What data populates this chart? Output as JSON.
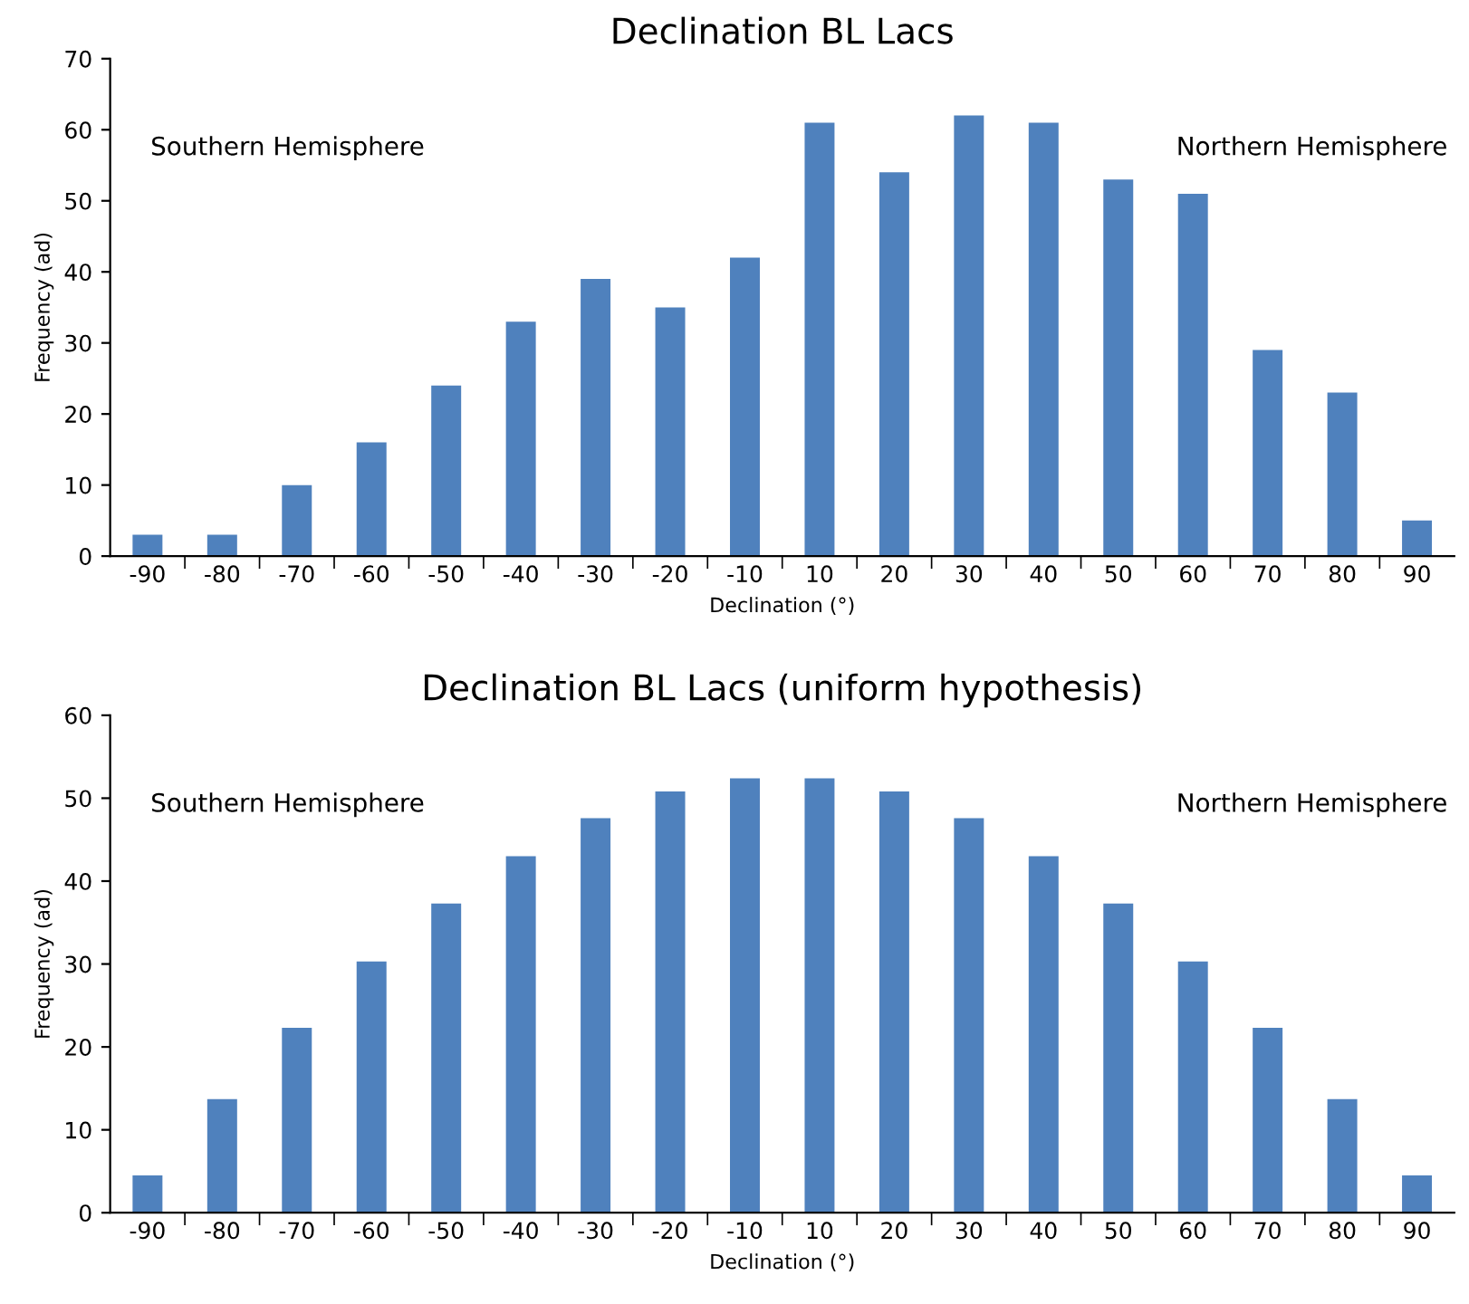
{
  "chart_data": [
    {
      "type": "bar",
      "title": "Declination BL Lacs",
      "xlabel": "Declination (°)",
      "ylabel": "Frequency (ad)",
      "categories": [
        "-90",
        "-80",
        "-70",
        "-60",
        "-50",
        "-40",
        "-30",
        "-20",
        "-10",
        "10",
        "20",
        "30",
        "40",
        "50",
        "60",
        "70",
        "80",
        "90"
      ],
      "values": [
        3,
        3,
        10,
        16,
        24,
        33,
        39,
        35,
        42,
        61,
        54,
        62,
        61,
        53,
        51,
        29,
        23,
        5
      ],
      "color": "#4f81bd",
      "ylim": [
        0,
        70
      ],
      "yticks": [
        0,
        10,
        20,
        30,
        40,
        50,
        60,
        70
      ],
      "grid": false,
      "annotations": [
        "Southern Hemisphere",
        "Northern Hemisphere"
      ]
    },
    {
      "type": "bar",
      "title": "Declination BL Lacs (uniform hypothesis)",
      "xlabel": "Declination (°)",
      "ylabel": "Frequency (ad)",
      "categories": [
        "-90",
        "-80",
        "-70",
        "-60",
        "-50",
        "-40",
        "-30",
        "-20",
        "-10",
        "10",
        "20",
        "30",
        "40",
        "50",
        "60",
        "70",
        "80",
        "90"
      ],
      "values": [
        4.5,
        13.7,
        22.3,
        30.3,
        37.3,
        43,
        47.6,
        50.8,
        52.4,
        52.4,
        50.8,
        47.6,
        43,
        37.3,
        30.3,
        22.3,
        13.7,
        4.5
      ],
      "color": "#4f81bd",
      "ylim": [
        0,
        60
      ],
      "yticks": [
        0,
        10,
        20,
        30,
        40,
        50,
        60
      ],
      "grid": false,
      "annotations": [
        "Southern Hemisphere",
        "Northern Hemisphere"
      ]
    }
  ]
}
